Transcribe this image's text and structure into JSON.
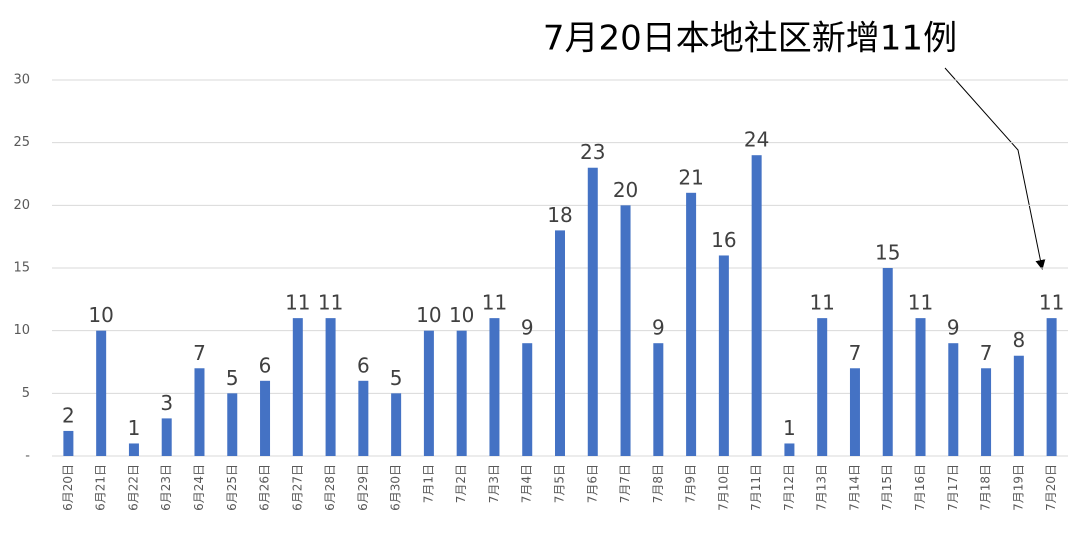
{
  "chart_data": {
    "type": "bar",
    "title": "7月20日本地社区新增11例",
    "categories": [
      "6月20日",
      "6月21日",
      "6月22日",
      "6月23日",
      "6月24日",
      "6月25日",
      "6月26日",
      "6月27日",
      "6月28日",
      "6月29日",
      "6月30日",
      "7月1日",
      "7月2日",
      "7月3日",
      "7月4日",
      "7月5日",
      "7月6日",
      "7月7日",
      "7月8日",
      "7月9日",
      "7月10日",
      "7月11日",
      "7月12日",
      "7月13日",
      "7月14日",
      "7月15日",
      "7月16日",
      "7月17日",
      "7月18日",
      "7月19日",
      "7月20日"
    ],
    "values": [
      2,
      10,
      1,
      3,
      7,
      5,
      6,
      11,
      11,
      6,
      5,
      10,
      10,
      11,
      9,
      18,
      23,
      20,
      9,
      21,
      16,
      24,
      1,
      11,
      7,
      15,
      11,
      9,
      7,
      8,
      11
    ],
    "color": "#4472c4",
    "ylim": [
      0,
      30
    ],
    "yticks": [
      {
        "value": 0,
        "label": "-"
      },
      5,
      10,
      15,
      20,
      25,
      30
    ],
    "grid": true
  }
}
